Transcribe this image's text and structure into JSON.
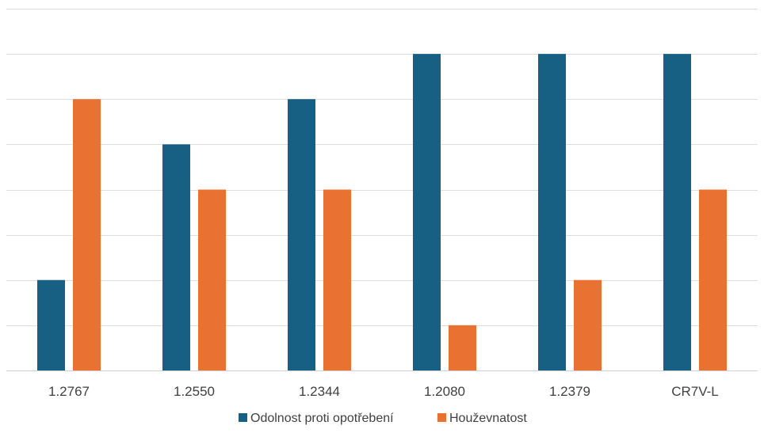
{
  "chart_data": {
    "type": "bar",
    "title": "",
    "xlabel": "",
    "ylabel": "",
    "categories": [
      "1.2767",
      "1.2550",
      "1.2344",
      "1.2080",
      "1.2379",
      "CR7V-L"
    ],
    "series": [
      {
        "name": "Odolnost proti opotřebení",
        "color": "#175F83",
        "values": [
          2,
          5,
          6,
          7,
          7,
          7
        ]
      },
      {
        "name": "Houževnatost",
        "color": "#E97132",
        "values": [
          6,
          4,
          4,
          1,
          2,
          4
        ]
      }
    ],
    "ylim": [
      0,
      8
    ],
    "y_tick_labels_visible": false,
    "grid": true,
    "legend_position": "bottom"
  }
}
